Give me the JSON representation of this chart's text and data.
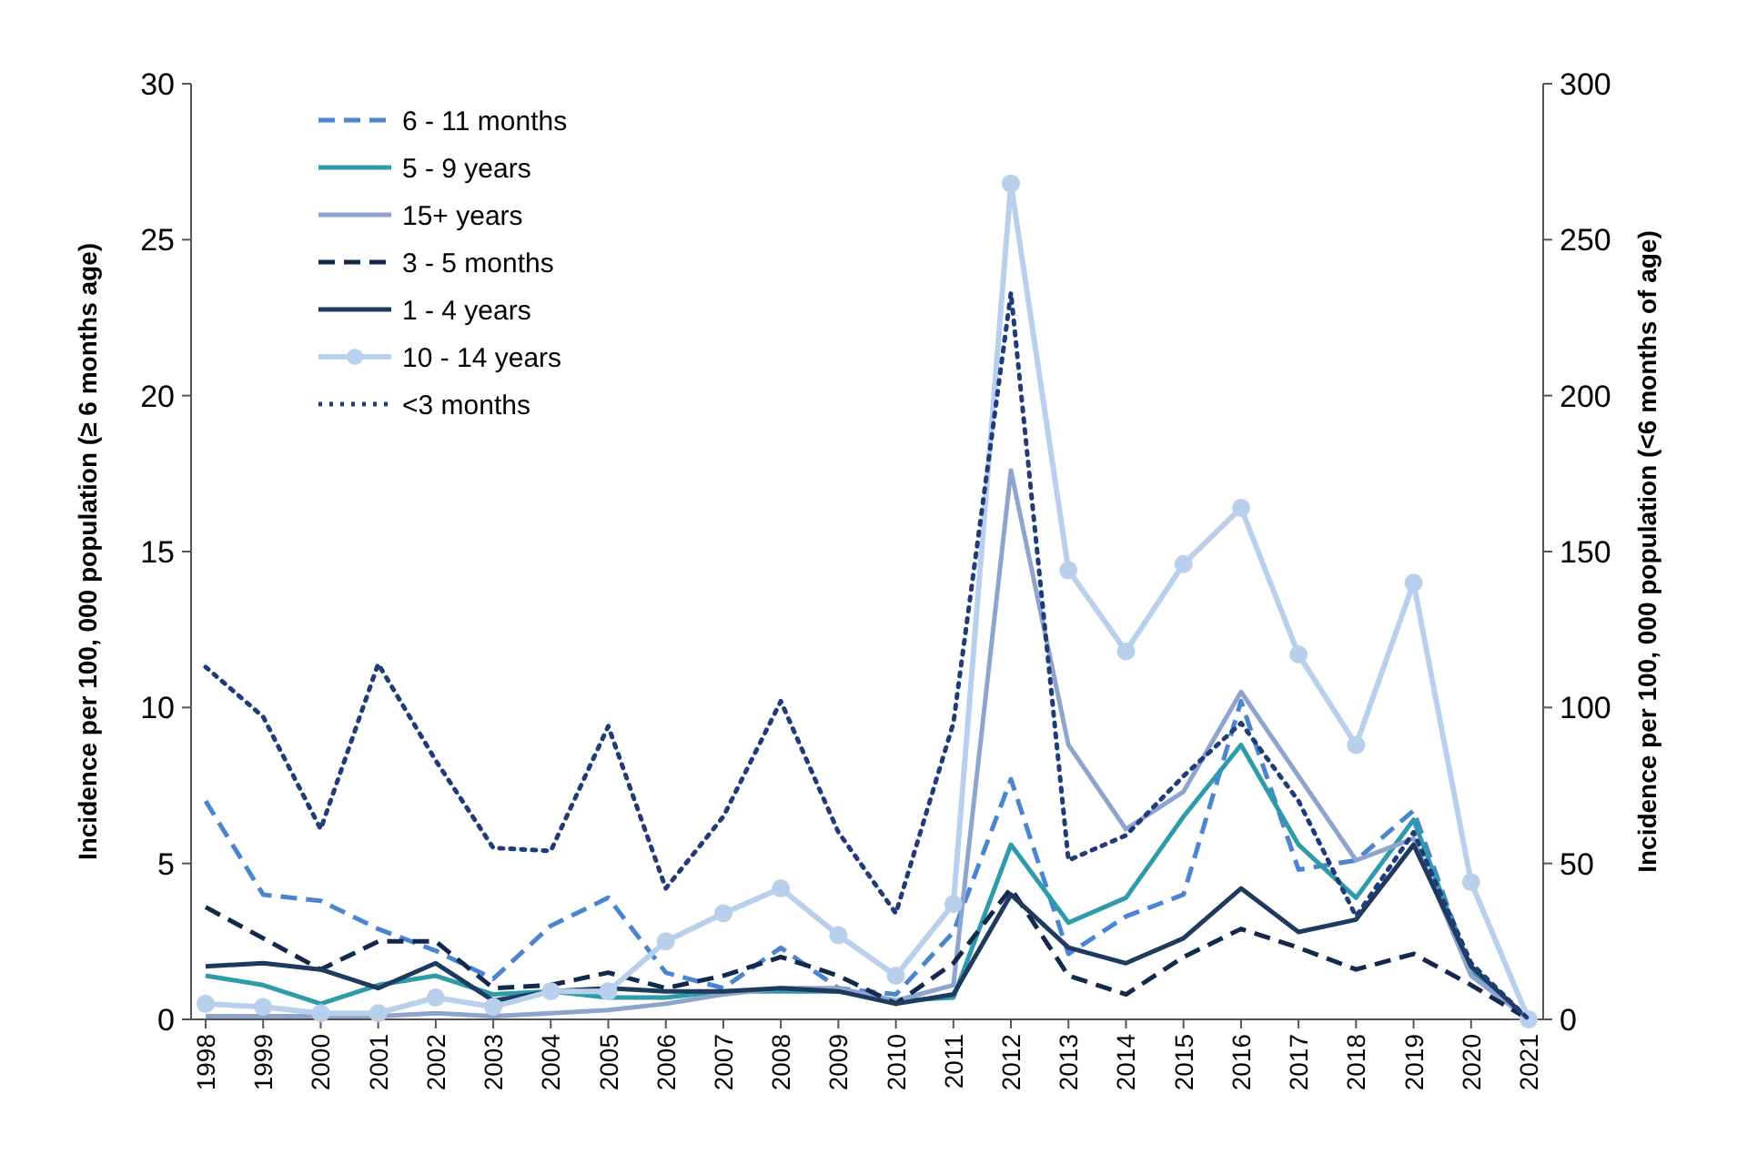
{
  "chart_data": {
    "type": "line",
    "ylabel": "Incidence per 100, 000 population (≥ 6 months age)",
    "y2label": "Incidence per 100, 000 population (<6 months of age)",
    "categories": [
      "1998",
      "1999",
      "2000",
      "2001",
      "2002",
      "2003",
      "2004",
      "2005",
      "2006",
      "2007",
      "2008",
      "2009",
      "2010",
      "2011",
      "2012",
      "2013",
      "2014",
      "2015",
      "2016",
      "2017",
      "2018",
      "2019",
      "2020",
      "2021"
    ],
    "ylim": [
      0,
      30
    ],
    "yticks": [
      0,
      5,
      10,
      15,
      20,
      25,
      30
    ],
    "y2lim": [
      0,
      300
    ],
    "y2ticks": [
      0,
      50,
      100,
      150,
      200,
      250,
      300
    ],
    "grid": false,
    "legend": "top left",
    "series": [
      {
        "name": "6 - 11 months",
        "color": "#4a86d0",
        "line_style": "dashed",
        "values": [
          7.0,
          4.0,
          3.8,
          2.9,
          2.2,
          1.3,
          3.0,
          3.9,
          1.5,
          1.0,
          2.3,
          1.0,
          0.8,
          2.8,
          7.7,
          2.1,
          3.3,
          4.0,
          10.2,
          4.8,
          5.1,
          6.7,
          1.5,
          0
        ]
      },
      {
        "name": "5 - 9 years",
        "color": "#2e9aaa",
        "line_style": "solid",
        "values": [
          1.4,
          1.1,
          0.5,
          1.1,
          1.4,
          0.8,
          0.9,
          0.7,
          0.7,
          0.9,
          0.9,
          0.9,
          0.6,
          0.7,
          5.6,
          3.1,
          3.9,
          6.5,
          8.8,
          5.6,
          3.9,
          6.4,
          1.5,
          0
        ]
      },
      {
        "name": "15+ years",
        "color": "#8fa3cf",
        "line_style": "solid",
        "values": [
          0.1,
          0.1,
          0.1,
          0.1,
          0.2,
          0.1,
          0.2,
          0.3,
          0.5,
          0.8,
          1.0,
          1.0,
          0.6,
          1.1,
          17.6,
          8.8,
          6.1,
          7.3,
          10.5,
          7.8,
          5.1,
          5.8,
          1.4,
          0
        ]
      },
      {
        "name": "3 - 5 months",
        "color": "#13294b",
        "line_style": "dashed",
        "axis": "y2",
        "values": [
          36,
          26,
          16,
          25,
          25,
          10,
          11,
          15,
          10,
          14,
          20,
          14,
          5,
          18,
          42,
          14,
          8,
          20,
          29,
          23,
          16,
          21,
          11,
          0
        ]
      },
      {
        "name": "1 - 4 years",
        "color": "#1f3a5f",
        "line_style": "solid",
        "values": [
          1.7,
          1.8,
          1.6,
          1.0,
          1.8,
          0.6,
          0.9,
          1.0,
          0.9,
          0.9,
          1.0,
          0.9,
          0.5,
          0.8,
          4.0,
          2.3,
          1.8,
          2.6,
          4.2,
          2.8,
          3.2,
          5.6,
          1.7,
          0
        ]
      },
      {
        "name": "10 - 14 years",
        "color": "#b8d0ec",
        "line_style": "solid",
        "marker": "circle",
        "values": [
          0.5,
          0.4,
          0.2,
          0.2,
          0.7,
          0.4,
          0.9,
          0.9,
          2.5,
          3.4,
          4.2,
          2.7,
          1.4,
          3.7,
          26.8,
          14.4,
          11.8,
          14.6,
          16.4,
          11.7,
          8.8,
          14.0,
          4.4,
          0
        ]
      },
      {
        "name": "<3 months",
        "color": "#1f3c78",
        "line_style": "dotted",
        "axis": "y2",
        "values": [
          113,
          97,
          61,
          114,
          83,
          55,
          54,
          94,
          42,
          65,
          102,
          60,
          34,
          95,
          233,
          51,
          59,
          78,
          95,
          70,
          33,
          60,
          18,
          0
        ]
      }
    ]
  }
}
